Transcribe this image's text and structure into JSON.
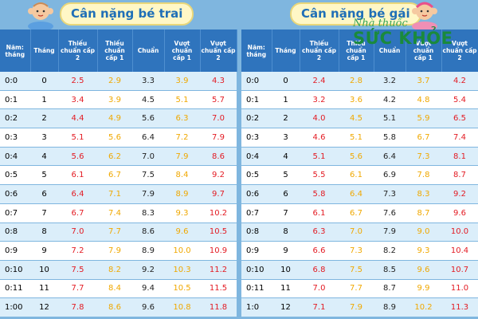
{
  "boys": {
    "title": "Cân nặng bé trai",
    "headers": [
      "Năm: tháng",
      "Tháng",
      "Thiếu chuẩn cấp 2",
      "Thiếu chuẩn cấp 1",
      "Chuẩn",
      "Vượt chuẩn cấp 1",
      "Vượt chuẩn cấp 2"
    ],
    "rows": [
      {
        "age": "0:0",
        "month": "0",
        "m2": "2.5",
        "m1": "2.9",
        "n": "3.3",
        "p1": "3.9",
        "p2": "4.3"
      },
      {
        "age": "0:1",
        "month": "1",
        "m2": "3.4",
        "m1": "3.9",
        "n": "4.5",
        "p1": "5.1",
        "p2": "5.7"
      },
      {
        "age": "0:2",
        "month": "2",
        "m2": "4.4",
        "m1": "4.9",
        "n": "5.6",
        "p1": "6.3",
        "p2": "7.0"
      },
      {
        "age": "0:3",
        "month": "3",
        "m2": "5.1",
        "m1": "5.6",
        "n": "6.4",
        "p1": "7.2",
        "p2": "7.9"
      },
      {
        "age": "0:4",
        "month": "4",
        "m2": "5.6",
        "m1": "6.2",
        "n": "7.0",
        "p1": "7.9",
        "p2": "8.6"
      },
      {
        "age": "0:5",
        "month": "5",
        "m2": "6.1",
        "m1": "6.7",
        "n": "7.5",
        "p1": "8.4",
        "p2": "9.2"
      },
      {
        "age": "0:6",
        "month": "6",
        "m2": "6.4",
        "m1": "7.1",
        "n": "7.9",
        "p1": "8.9",
        "p2": "9.7"
      },
      {
        "age": "0:7",
        "month": "7",
        "m2": "6.7",
        "m1": "7.4",
        "n": "8.3",
        "p1": "9.3",
        "p2": "10.2"
      },
      {
        "age": "0:8",
        "month": "8",
        "m2": "7.0",
        "m1": "7.7",
        "n": "8.6",
        "p1": "9.6",
        "p2": "10.5"
      },
      {
        "age": "0:9",
        "month": "9",
        "m2": "7.2",
        "m1": "7.9",
        "n": "8.9",
        "p1": "10.0",
        "p2": "10.9"
      },
      {
        "age": "0:10",
        "month": "10",
        "m2": "7.5",
        "m1": "8.2",
        "n": "9.2",
        "p1": "10.3",
        "p2": "11.2"
      },
      {
        "age": "0:11",
        "month": "11",
        "m2": "7.7",
        "m1": "8.4",
        "n": "9.4",
        "p1": "10.5",
        "p2": "11.5"
      },
      {
        "age": "1:00",
        "month": "12",
        "m2": "7.8",
        "m1": "8.6",
        "n": "9.6",
        "p1": "10.8",
        "p2": "11.8"
      }
    ]
  },
  "girls": {
    "title": "Cân nặng bé gái",
    "headers": [
      "Năm: tháng",
      "Tháng",
      "Thiếu chuẩn cấp 2",
      "Thiếu chuẩn cấp 1",
      "Chuẩn",
      "Vượt chuẩn cấp 1",
      "Vượt chuẩn cấp 2"
    ],
    "rows": [
      {
        "age": "0:0",
        "month": "0",
        "m2": "2.4",
        "m1": "2.8",
        "n": "3.2",
        "p1": "3.7",
        "p2": "4.2"
      },
      {
        "age": "0:1",
        "month": "1",
        "m2": "3.2",
        "m1": "3.6",
        "n": "4.2",
        "p1": "4.8",
        "p2": "5.4"
      },
      {
        "age": "0:2",
        "month": "2",
        "m2": "4.0",
        "m1": "4.5",
        "n": "5.1",
        "p1": "5.9",
        "p2": "6.5"
      },
      {
        "age": "0:3",
        "month": "3",
        "m2": "4.6",
        "m1": "5.1",
        "n": "5.8",
        "p1": "6.7",
        "p2": "7.4"
      },
      {
        "age": "0:4",
        "month": "4",
        "m2": "5.1",
        "m1": "5.6",
        "n": "6.4",
        "p1": "7.3",
        "p2": "8.1"
      },
      {
        "age": "0:5",
        "month": "5",
        "m2": "5.5",
        "m1": "6.1",
        "n": "6.9",
        "p1": "7.8",
        "p2": "8.7"
      },
      {
        "age": "0:6",
        "month": "6",
        "m2": "5.8",
        "m1": "6.4",
        "n": "7.3",
        "p1": "8.3",
        "p2": "9.2"
      },
      {
        "age": "0:7",
        "month": "7",
        "m2": "6.1",
        "m1": "6.7",
        "n": "7.6",
        "p1": "8.7",
        "p2": "9.6"
      },
      {
        "age": "0:8",
        "month": "8",
        "m2": "6.3",
        "m1": "7.0",
        "n": "7.9",
        "p1": "9.0",
        "p2": "10.0"
      },
      {
        "age": "0:9",
        "month": "9",
        "m2": "6.6",
        "m1": "7.3",
        "n": "8.2",
        "p1": "9.3",
        "p2": "10.4"
      },
      {
        "age": "0:10",
        "month": "10",
        "m2": "6.8",
        "m1": "7.5",
        "n": "8.5",
        "p1": "9.6",
        "p2": "10.7"
      },
      {
        "age": "0:11",
        "month": "11",
        "m2": "7.0",
        "m1": "7.7",
        "n": "8.7",
        "p1": "9.9",
        "p2": "11.0"
      },
      {
        "age": "1:0",
        "month": "12",
        "m2": "7.1",
        "m1": "7.9",
        "n": "8.9",
        "p1": "10.2",
        "p2": "11.3"
      }
    ]
  },
  "watermark": {
    "tagline": "Nhà thuốc",
    "brand": "SỨC KHỎE"
  },
  "colors": {
    "background": "#7fb6df",
    "header": "#2f74bd",
    "row_alt": "#dbeefa",
    "title_text": "#1f6fb7",
    "deficit_2": "#e31b23",
    "band_1": "#f0a800",
    "watermark": "#1a8a3c"
  },
  "icons": {
    "boy": "baby-boy-icon",
    "girl": "baby-girl-icon"
  }
}
